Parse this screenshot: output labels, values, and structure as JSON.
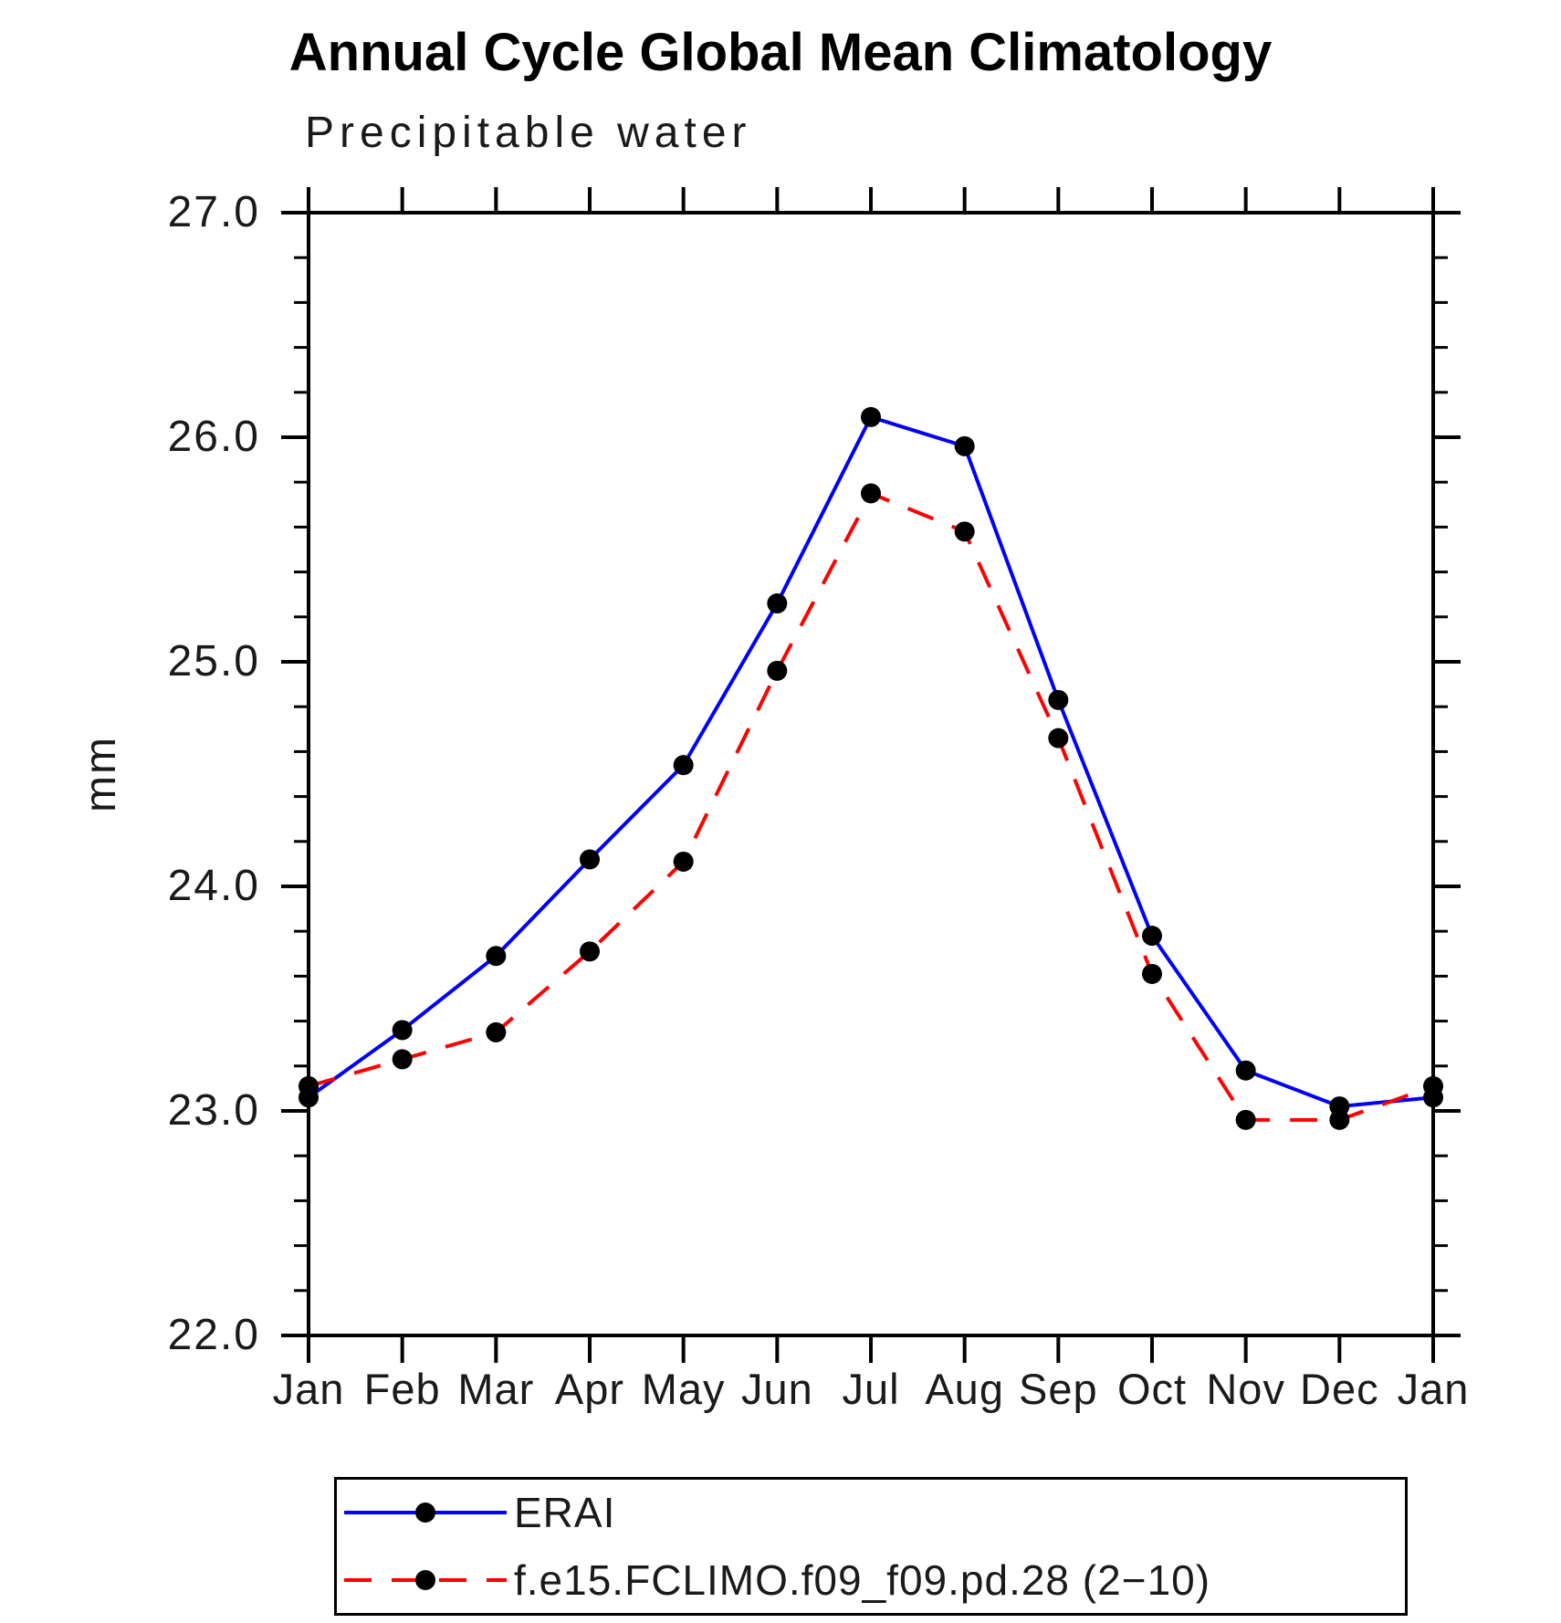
{
  "chart_data": {
    "type": "line",
    "title": "Annual Cycle Global Mean Climatology",
    "subtitle": "Precipitable water",
    "ylabel": "mm",
    "xlabel": "",
    "categories": [
      "Jan",
      "Feb",
      "Mar",
      "Apr",
      "May",
      "Jun",
      "Jul",
      "Aug",
      "Sep",
      "Oct",
      "Nov",
      "Dec",
      "Jan"
    ],
    "ylim": [
      22.0,
      27.0
    ],
    "ytick_values": [
      27.0,
      26.0,
      25.0,
      24.0,
      23.0,
      22.0
    ],
    "ytick_labels": [
      "27.0",
      "26.0",
      "25.0",
      "24.0",
      "23.0",
      "22.0"
    ],
    "y_minor_tick_step": 0.2,
    "grid": false,
    "legend_position": "below-plot-boxed",
    "axis_color": "#000000",
    "series": [
      {
        "name": "ERAI",
        "color": "#0000ff",
        "line_style": "solid",
        "marker": "filled-circle",
        "marker_color": "#000000",
        "values": [
          23.06,
          23.36,
          23.69,
          24.12,
          24.54,
          25.26,
          26.09,
          25.96,
          24.83,
          23.78,
          23.18,
          23.02,
          23.06
        ]
      },
      {
        "name": "f.e15.FCLIMO.f09_f09.pd.28 (2−10)",
        "color": "#ff0000",
        "line_style": "dashed",
        "marker": "filled-circle",
        "marker_color": "#000000",
        "values": [
          23.11,
          23.23,
          23.35,
          23.71,
          24.11,
          24.96,
          25.75,
          25.58,
          24.66,
          23.61,
          22.96,
          22.96,
          23.11
        ]
      }
    ]
  }
}
